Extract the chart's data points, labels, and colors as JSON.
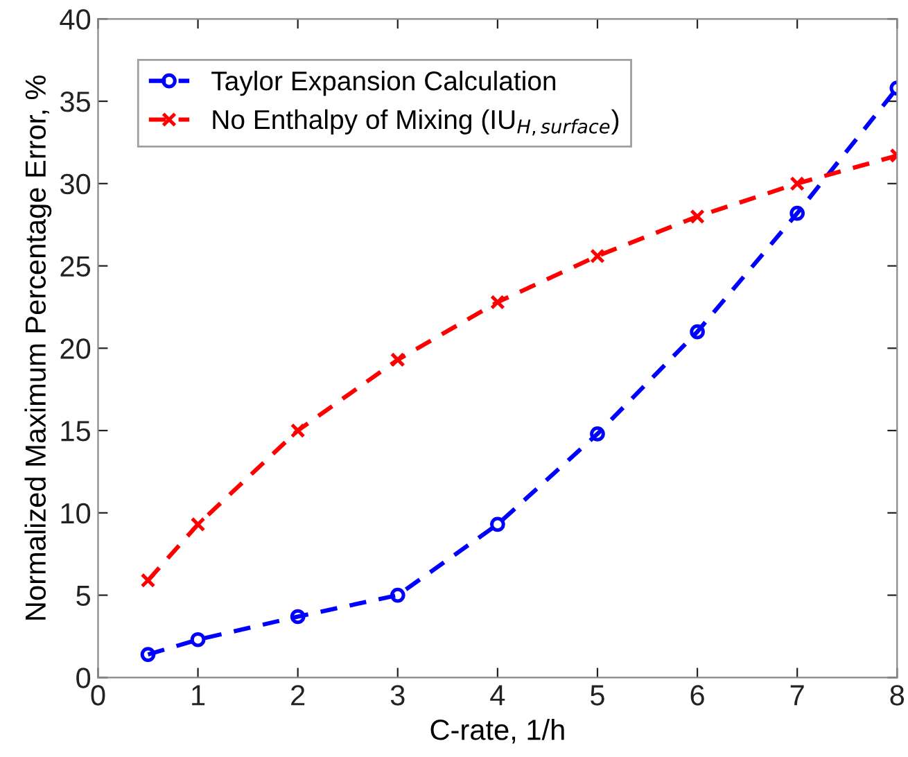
{
  "chart_data": {
    "type": "line",
    "xlabel": "C-rate, 1/h",
    "ylabel": "Normalized Maximum Percentage Error, %",
    "x": [
      0.5,
      1,
      2,
      3,
      4,
      5,
      6,
      7,
      8
    ],
    "series": [
      {
        "name": "Taylor Expansion Calculation",
        "color": "#0000ff",
        "marker": "circle",
        "values": [
          1.4,
          2.3,
          3.7,
          5.0,
          9.3,
          14.8,
          21.0,
          28.2,
          35.8
        ]
      },
      {
        "name": "No Enthalpy of Mixing (IU$_{H,surface}$)",
        "color": "#ff0000",
        "marker": "cross",
        "values": [
          5.9,
          9.3,
          15.0,
          19.3,
          22.8,
          25.6,
          28.0,
          30.0,
          31.7
        ]
      }
    ],
    "xlim": [
      0,
      8
    ],
    "xticks": [
      0,
      1,
      2,
      3,
      4,
      5,
      6,
      7,
      8
    ],
    "ylim": [
      0,
      40
    ],
    "yticks": [
      0,
      5,
      10,
      15,
      20,
      25,
      30,
      35,
      40
    ],
    "grid": false,
    "legend": "top left",
    "line_style": "dashed"
  }
}
